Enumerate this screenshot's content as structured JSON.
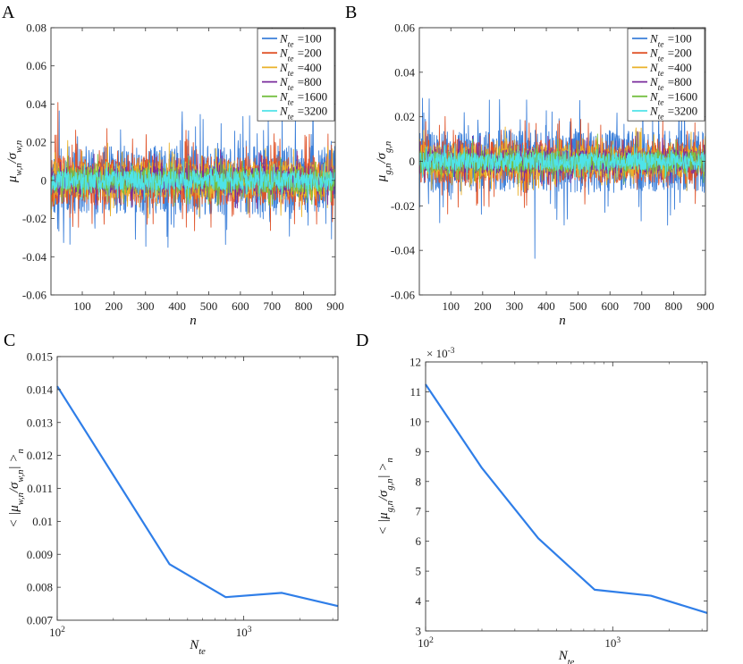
{
  "chart_data": [
    {
      "panel": "A",
      "type": "line",
      "title": "",
      "xlabel": "n",
      "ylabel": "μ_{w,n}/σ_{w,n}",
      "xlim": [
        1,
        900
      ],
      "ylim": [
        -0.06,
        0.08
      ],
      "xticks": [
        100,
        200,
        300,
        400,
        500,
        600,
        700,
        800,
        900
      ],
      "xtick_labels": [
        "100",
        "200",
        "300",
        "400",
        "500",
        "600",
        "700",
        "800",
        "900"
      ],
      "yticks": [
        -0.06,
        -0.04,
        -0.02,
        0,
        0.02,
        0.04,
        0.06,
        0.08
      ],
      "ytick_labels": [
        "-0.06",
        "-0.04",
        "-0.02",
        "0",
        "0.02",
        "0.04",
        "0.06",
        "0.08"
      ],
      "legend_position": "top-right",
      "legend_prefix": "N",
      "legend_sub": "te",
      "series": [
        {
          "name": "=100",
          "color": "#3b7fd9",
          "amplitude": 0.018,
          "seed": 11
        },
        {
          "name": "=200",
          "color": "#e0542a",
          "amplitude": 0.013,
          "seed": 23
        },
        {
          "name": "=400",
          "color": "#eab22a",
          "amplitude": 0.01,
          "seed": 37
        },
        {
          "name": "=800",
          "color": "#7a2d9c",
          "amplitude": 0.0075,
          "seed": 41
        },
        {
          "name": "=1600",
          "color": "#77c043",
          "amplitude": 0.0065,
          "seed": 53
        },
        {
          "name": "=3200",
          "color": "#4fe3e8",
          "amplitude": 0.005,
          "seed": 67
        }
      ]
    },
    {
      "panel": "B",
      "type": "line",
      "title": "",
      "xlabel": "n",
      "ylabel": "μ_{g,n}/σ_{g,n}",
      "xlim": [
        1,
        900
      ],
      "ylim": [
        -0.06,
        0.06
      ],
      "xticks": [
        100,
        200,
        300,
        400,
        500,
        600,
        700,
        800,
        900
      ],
      "xtick_labels": [
        "100",
        "200",
        "300",
        "400",
        "500",
        "600",
        "700",
        "800",
        "900"
      ],
      "yticks": [
        -0.06,
        -0.04,
        -0.02,
        0,
        0.02,
        0.04,
        0.06
      ],
      "ytick_labels": [
        "-0.06",
        "-0.04",
        "-0.02",
        "0",
        "0.02",
        "0.04",
        "0.06"
      ],
      "legend_position": "top-right",
      "legend_prefix": "N",
      "legend_sub": "te",
      "series": [
        {
          "name": "=100",
          "color": "#3b7fd9",
          "amplitude": 0.014,
          "seed": 13
        },
        {
          "name": "=200",
          "color": "#e0542a",
          "amplitude": 0.01,
          "seed": 29
        },
        {
          "name": "=400",
          "color": "#eab22a",
          "amplitude": 0.0075,
          "seed": 31
        },
        {
          "name": "=800",
          "color": "#7a2d9c",
          "amplitude": 0.0055,
          "seed": 43
        },
        {
          "name": "=1600",
          "color": "#77c043",
          "amplitude": 0.0048,
          "seed": 59
        },
        {
          "name": "=3200",
          "color": "#4fe3e8",
          "amplitude": 0.004,
          "seed": 71
        }
      ]
    },
    {
      "panel": "C",
      "type": "line",
      "title": "",
      "xlabel": "N_{te}",
      "ylabel": "< |μ_{w,n}/σ_{w,n}| >_n",
      "xscale": "log",
      "xlim": [
        100,
        3200
      ],
      "ylim": [
        0.007,
        0.015
      ],
      "xticks": [
        100,
        1000
      ],
      "xtick_base": [
        "10",
        "10"
      ],
      "xtick_exp": [
        "2",
        "3"
      ],
      "yticks": [
        0.007,
        0.008,
        0.009,
        0.01,
        0.011,
        0.012,
        0.013,
        0.014,
        0.015
      ],
      "ytick_labels": [
        "0.007",
        "0.008",
        "0.009",
        "0.01",
        "0.011",
        "0.012",
        "0.013",
        "0.014",
        "0.015"
      ],
      "color": "#2f7ee8",
      "x": [
        100,
        200,
        400,
        800,
        1600,
        3200
      ],
      "y": [
        0.0141,
        0.0114,
        0.0087,
        0.0077,
        0.00783,
        0.00743
      ]
    },
    {
      "panel": "D",
      "type": "line",
      "title": "",
      "xlabel": "N_{te}",
      "ylabel": "< |μ_{g,n}/σ_{g,n}| >_n",
      "xscale": "log",
      "xlim": [
        100,
        3200
      ],
      "ylim": [
        3,
        12
      ],
      "scale_label_base": "× 10",
      "scale_label_exp": "-3",
      "xticks": [
        100,
        1000
      ],
      "xtick_base": [
        "10",
        "10"
      ],
      "xtick_exp": [
        "2",
        "3"
      ],
      "yticks": [
        3,
        4,
        5,
        6,
        7,
        8,
        9,
        10,
        11,
        12
      ],
      "ytick_labels": [
        "3",
        "4",
        "5",
        "6",
        "7",
        "8",
        "9",
        "10",
        "11",
        "12"
      ],
      "color": "#2f7ee8",
      "x": [
        100,
        200,
        400,
        800,
        1600,
        3200
      ],
      "y": [
        11.25,
        8.45,
        6.1,
        4.38,
        4.18,
        3.6
      ]
    }
  ]
}
